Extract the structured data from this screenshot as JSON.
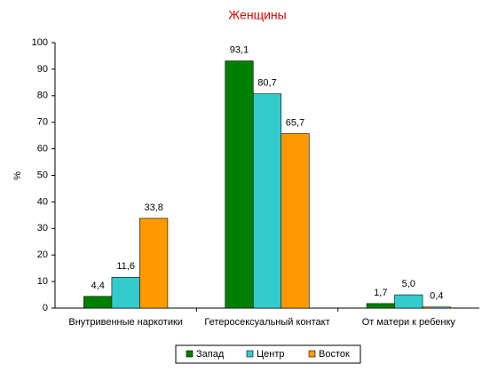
{
  "chart_data": {
    "type": "bar",
    "title": "Женщины",
    "y_label": "%",
    "categories": [
      "Внутривенные наркотики",
      "Гетеросексуальный контакт",
      "От матери к ребенку"
    ],
    "series": [
      {
        "name": "Запад",
        "color": "#008000",
        "values": [
          4.4,
          93.1,
          1.7
        ],
        "value_labels": [
          "4,4",
          "93,1",
          "1,7"
        ]
      },
      {
        "name": "Центр",
        "color": "#33cccc",
        "values": [
          11.6,
          80.7,
          5.0
        ],
        "value_labels": [
          "11,6",
          "80,7",
          "5,0"
        ]
      },
      {
        "name": "Восток",
        "color": "#ff9900",
        "values": [
          33.8,
          65.7,
          0.4
        ],
        "value_labels": [
          "33,8",
          "65,7",
          "0,4"
        ]
      }
    ],
    "ylim": [
      0,
      100
    ],
    "yticks": [
      0,
      10,
      20,
      30,
      40,
      50,
      60,
      70,
      80,
      90,
      100
    ],
    "grid": false,
    "legend": "bottom"
  }
}
